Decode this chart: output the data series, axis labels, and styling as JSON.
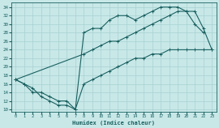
{
  "bg_color": "#c8e8e8",
  "line_color": "#1a6060",
  "grid_color": "#a8d0d0",
  "xlabel": "Humidex (Indice chaleur)",
  "xlim": [
    -0.5,
    23.5
  ],
  "ylim": [
    9.5,
    35
  ],
  "yticks": [
    10,
    12,
    14,
    16,
    18,
    20,
    22,
    24,
    26,
    28,
    30,
    32,
    34
  ],
  "xticks": [
    0,
    1,
    2,
    3,
    4,
    5,
    6,
    7,
    8,
    9,
    10,
    11,
    12,
    13,
    14,
    15,
    16,
    17,
    18,
    19,
    20,
    21,
    22,
    23
  ],
  "line1_x": [
    0,
    1,
    2,
    3,
    4,
    5,
    6,
    7,
    8,
    9,
    10,
    11,
    12,
    13,
    14,
    15,
    16,
    17,
    18,
    19,
    20,
    21,
    22
  ],
  "line1_y": [
    17,
    16,
    15,
    13,
    12,
    11,
    11,
    10,
    28,
    29,
    29,
    31,
    32,
    32,
    31,
    32,
    33,
    34,
    34,
    34,
    33,
    30,
    28
  ],
  "line2_x": [
    0,
    1,
    2,
    3,
    4,
    5,
    6,
    7,
    8,
    9,
    10,
    11,
    12,
    13,
    14,
    15,
    16,
    17,
    18,
    19,
    20,
    21,
    22,
    23
  ],
  "line2_y": [
    17,
    16,
    14,
    14,
    13,
    12,
    12,
    10,
    16,
    17,
    18,
    19,
    20,
    21,
    22,
    22,
    23,
    23,
    24,
    24,
    24,
    24,
    24,
    24
  ],
  "line3_x": [
    0,
    8,
    9,
    10,
    11,
    12,
    13,
    14,
    15,
    16,
    17,
    18,
    19,
    20,
    21,
    22,
    23
  ],
  "line3_y": [
    17,
    23,
    24,
    25,
    26,
    26,
    27,
    28,
    29,
    30,
    31,
    32,
    33,
    33,
    33,
    29,
    24
  ]
}
